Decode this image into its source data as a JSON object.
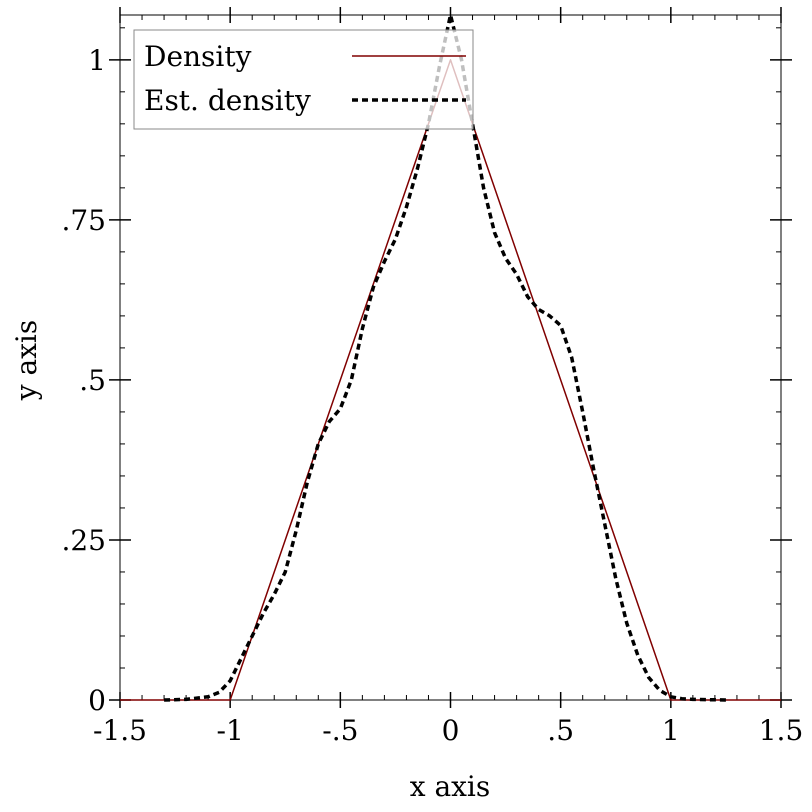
{
  "chart_data": {
    "type": "line",
    "xlabel": "x axis",
    "ylabel": "y axis",
    "xlim": [
      -1.5,
      1.5
    ],
    "ylim": [
      0,
      1.07
    ],
    "x_ticks": [
      {
        "value": -1.5,
        "label": "-1.5"
      },
      {
        "value": -1.0,
        "label": "-1"
      },
      {
        "value": -0.5,
        "label": "-.5"
      },
      {
        "value": 0.0,
        "label": "0"
      },
      {
        "value": 0.5,
        "label": ".5"
      },
      {
        "value": 1.0,
        "label": "1"
      },
      {
        "value": 1.5,
        "label": "1.5"
      }
    ],
    "y_ticks": [
      {
        "value": 0.0,
        "label": "0"
      },
      {
        "value": 0.25,
        "label": ".25"
      },
      {
        "value": 0.5,
        "label": ".5"
      },
      {
        "value": 0.75,
        "label": ".75"
      },
      {
        "value": 1.0,
        "label": "1"
      }
    ],
    "grid": false,
    "legend_position": "top-left",
    "series": [
      {
        "name": "Density",
        "color": "#800000",
        "style": "solid",
        "points": [
          [
            -1.5,
            0
          ],
          [
            -1.0,
            0
          ],
          [
            0.0,
            1.0
          ],
          [
            1.0,
            0
          ],
          [
            1.5,
            0
          ]
        ]
      },
      {
        "name": "Est. density",
        "color": "#000000",
        "style": "dashed",
        "points": [
          [
            -1.3,
            0.0
          ],
          [
            -1.2,
            0.001
          ],
          [
            -1.1,
            0.005
          ],
          [
            -1.05,
            0.012
          ],
          [
            -1.0,
            0.03
          ],
          [
            -0.95,
            0.065
          ],
          [
            -0.9,
            0.1
          ],
          [
            -0.85,
            0.135
          ],
          [
            -0.8,
            0.165
          ],
          [
            -0.75,
            0.2
          ],
          [
            -0.7,
            0.265
          ],
          [
            -0.65,
            0.34
          ],
          [
            -0.6,
            0.4
          ],
          [
            -0.55,
            0.435
          ],
          [
            -0.5,
            0.455
          ],
          [
            -0.45,
            0.5
          ],
          [
            -0.4,
            0.58
          ],
          [
            -0.35,
            0.645
          ],
          [
            -0.3,
            0.685
          ],
          [
            -0.25,
            0.72
          ],
          [
            -0.2,
            0.77
          ],
          [
            -0.15,
            0.83
          ],
          [
            -0.1,
            0.9
          ],
          [
            -0.05,
            0.99
          ],
          [
            0.0,
            1.07
          ],
          [
            0.05,
            1.0
          ],
          [
            0.1,
            0.9
          ],
          [
            0.15,
            0.8
          ],
          [
            0.2,
            0.73
          ],
          [
            0.25,
            0.69
          ],
          [
            0.3,
            0.665
          ],
          [
            0.35,
            0.63
          ],
          [
            0.4,
            0.61
          ],
          [
            0.45,
            0.6
          ],
          [
            0.5,
            0.585
          ],
          [
            0.55,
            0.535
          ],
          [
            0.6,
            0.45
          ],
          [
            0.65,
            0.36
          ],
          [
            0.7,
            0.275
          ],
          [
            0.75,
            0.19
          ],
          [
            0.8,
            0.12
          ],
          [
            0.85,
            0.07
          ],
          [
            0.9,
            0.035
          ],
          [
            0.95,
            0.015
          ],
          [
            1.0,
            0.005
          ],
          [
            1.05,
            0.002
          ],
          [
            1.1,
            0.001
          ],
          [
            1.25,
            0.0
          ]
        ]
      }
    ]
  }
}
